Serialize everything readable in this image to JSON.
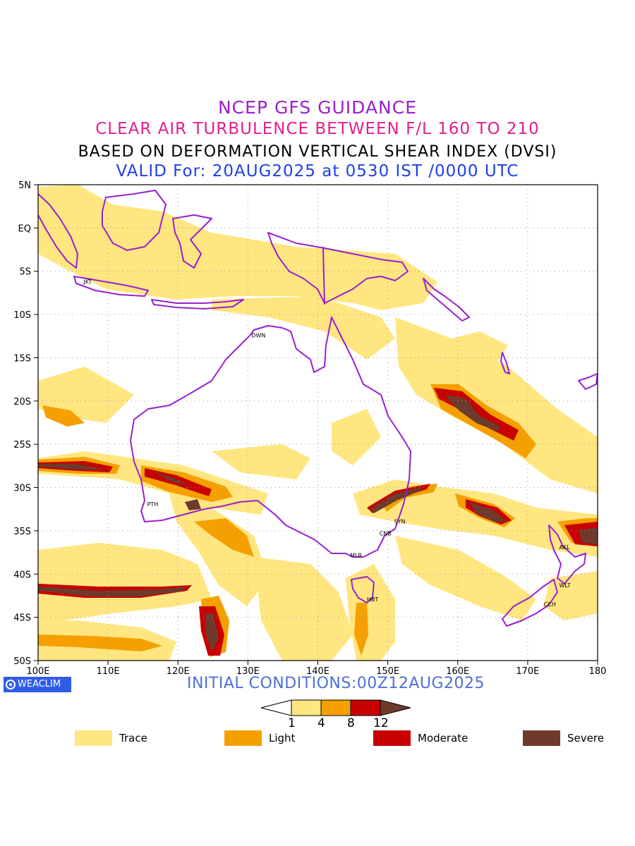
{
  "header": {
    "line1": "NCEP GFS GUIDANCE",
    "line2": "CLEAR AIR TURBULENCE BETWEEN F/L 160 TO 210",
    "line3": "BASED ON DEFORMATION VERTICAL SHEAR INDEX (DVSI)",
    "line4": "VALID For: 20AUG2025 at 0530 IST /0000 UTC"
  },
  "map": {
    "lon_range": [
      100,
      180
    ],
    "lat_range": [
      -50,
      5
    ],
    "lat_labels": [
      "5N",
      "EQ",
      "5S",
      "10S",
      "15S",
      "20S",
      "25S",
      "30S",
      "35S",
      "40S",
      "45S",
      "50S"
    ],
    "lon_labels": [
      "100E",
      "110E",
      "120E",
      "130E",
      "140E",
      "150E",
      "160E",
      "170E",
      "180"
    ],
    "cities": [
      {
        "code": "JKT",
        "lon": 106.8,
        "lat": -6.2
      },
      {
        "code": "DWN",
        "lon": 130.8,
        "lat": -12.4
      },
      {
        "code": "PTH",
        "lon": 115.9,
        "lat": -31.9
      },
      {
        "code": "SYN",
        "lon": 151.2,
        "lat": -33.9
      },
      {
        "code": "CNB",
        "lon": 149.1,
        "lat": -35.3
      },
      {
        "code": "MLB",
        "lon": 144.9,
        "lat": -37.8
      },
      {
        "code": "HBT",
        "lon": 147.3,
        "lat": -42.9
      },
      {
        "code": "AKL",
        "lon": 174.8,
        "lat": -36.9
      },
      {
        "code": "WLT",
        "lon": 174.8,
        "lat": -41.3
      },
      {
        "code": "CCH",
        "lon": 172.6,
        "lat": -43.5
      }
    ],
    "colors": {
      "trace": "#ffe680",
      "light": "#f5a000",
      "moderate": "#c80000",
      "severe": "#6e3a2c",
      "coast": "#9a1fd0"
    }
  },
  "footer": {
    "logo_text": "WEACLIM",
    "initial_conditions": "INITIAL CONDITIONS:00Z12AUG2025"
  },
  "colorbar": {
    "ticks": [
      "1",
      "4",
      "8",
      "12"
    ]
  },
  "legend": [
    {
      "label": "Trace",
      "color": "#ffe680"
    },
    {
      "label": "Light",
      "color": "#f5a000"
    },
    {
      "label": "Moderate",
      "color": "#c80000"
    },
    {
      "label": "Severe",
      "color": "#6e3a2c"
    }
  ]
}
